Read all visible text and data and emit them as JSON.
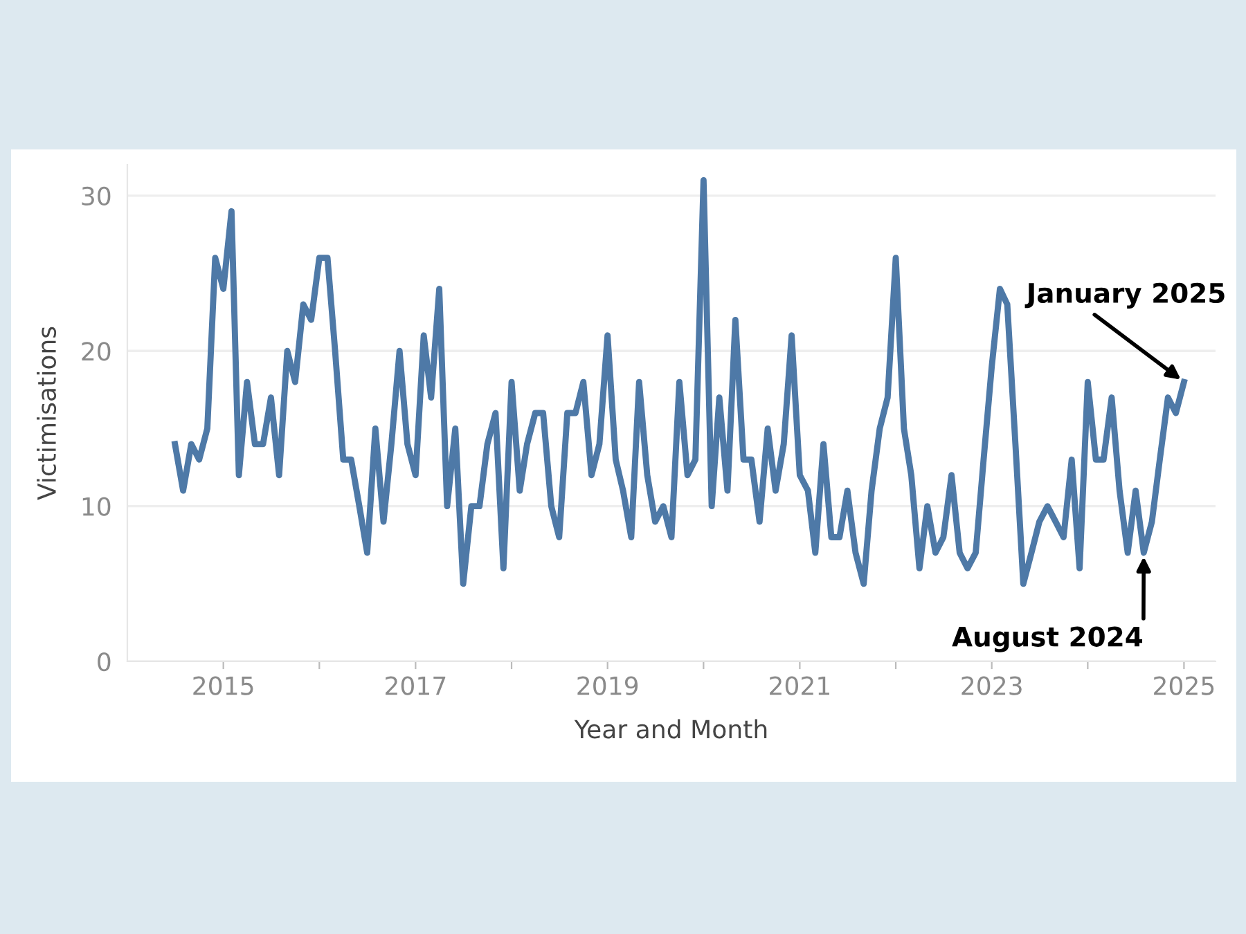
{
  "chart_data": {
    "type": "line",
    "xlabel": "Year and Month",
    "ylabel": "Victimisations",
    "x": [
      "2014-07",
      "2014-08",
      "2014-09",
      "2014-10",
      "2014-11",
      "2014-12",
      "2015-01",
      "2015-02",
      "2015-03",
      "2015-04",
      "2015-05",
      "2015-06",
      "2015-07",
      "2015-08",
      "2015-09",
      "2015-10",
      "2015-11",
      "2015-12",
      "2016-01",
      "2016-02",
      "2016-03",
      "2016-04",
      "2016-05",
      "2016-06",
      "2016-07",
      "2016-08",
      "2016-09",
      "2016-10",
      "2016-11",
      "2016-12",
      "2017-01",
      "2017-02",
      "2017-03",
      "2017-04",
      "2017-05",
      "2017-06",
      "2017-07",
      "2017-08",
      "2017-09",
      "2017-10",
      "2017-11",
      "2017-12",
      "2018-01",
      "2018-02",
      "2018-03",
      "2018-04",
      "2018-05",
      "2018-06",
      "2018-07",
      "2018-08",
      "2018-09",
      "2018-10",
      "2018-11",
      "2018-12",
      "2019-01",
      "2019-02",
      "2019-03",
      "2019-04",
      "2019-05",
      "2019-06",
      "2019-07",
      "2019-08",
      "2019-09",
      "2019-10",
      "2019-11",
      "2019-12",
      "2020-01",
      "2020-02",
      "2020-03",
      "2020-04",
      "2020-05",
      "2020-06",
      "2020-07",
      "2020-08",
      "2020-09",
      "2020-10",
      "2020-11",
      "2020-12",
      "2021-01",
      "2021-02",
      "2021-03",
      "2021-04",
      "2021-05",
      "2021-06",
      "2021-07",
      "2021-08",
      "2021-09",
      "2021-10",
      "2021-11",
      "2021-12",
      "2022-01",
      "2022-02",
      "2022-03",
      "2022-04",
      "2022-05",
      "2022-06",
      "2022-07",
      "2022-08",
      "2022-09",
      "2022-10",
      "2022-11",
      "2022-12",
      "2023-01",
      "2023-02",
      "2023-03",
      "2023-04",
      "2023-05",
      "2023-06",
      "2023-07",
      "2023-08",
      "2023-09",
      "2023-10",
      "2023-11",
      "2023-12",
      "2024-01",
      "2024-02",
      "2024-03",
      "2024-04",
      "2024-05",
      "2024-06",
      "2024-07",
      "2024-08",
      "2024-09",
      "2024-10",
      "2024-11",
      "2024-12",
      "2025-01"
    ],
    "series": [
      {
        "color": "#4e79a7",
        "values": [
          14,
          11,
          14,
          13,
          15,
          26,
          24,
          29,
          12,
          18,
          14,
          14,
          17,
          12,
          20,
          18,
          23,
          22,
          26,
          26,
          20,
          13,
          13,
          10,
          7,
          15,
          9,
          14,
          20,
          14,
          12,
          21,
          17,
          24,
          10,
          15,
          5,
          10,
          10,
          14,
          16,
          6,
          18,
          11,
          14,
          16,
          16,
          10,
          8,
          16,
          16,
          18,
          12,
          14,
          21,
          13,
          11,
          8,
          18,
          12,
          9,
          10,
          8,
          18,
          12,
          13,
          31,
          10,
          17,
          11,
          22,
          13,
          13,
          9,
          15,
          11,
          14,
          21,
          12,
          11,
          7,
          14,
          8,
          8,
          11,
          7,
          5,
          11,
          15,
          17,
          26,
          15,
          12,
          6,
          10,
          7,
          8,
          12,
          7,
          6,
          7,
          13,
          19,
          24,
          23,
          14,
          5,
          7,
          9,
          10,
          9,
          8,
          13,
          6,
          18,
          13,
          13,
          17,
          11,
          7,
          11,
          7,
          9,
          13,
          17,
          16,
          18
        ]
      }
    ],
    "xlim": [
      "2014-01",
      "2025-05"
    ],
    "xticks": [
      {
        "value": "2015",
        "label": "2015"
      },
      {
        "value": "2016",
        "label": null
      },
      {
        "value": "2017",
        "label": "2017"
      },
      {
        "value": "2018",
        "label": null
      },
      {
        "value": "2019",
        "label": "2019"
      },
      {
        "value": "2020",
        "label": null
      },
      {
        "value": "2021",
        "label": "2021"
      },
      {
        "value": "2022",
        "label": null
      },
      {
        "value": "2023",
        "label": "2023"
      },
      {
        "value": "2024",
        "label": null
      },
      {
        "value": "2025",
        "label": "2025"
      }
    ],
    "ylim": [
      0,
      32
    ],
    "yticks": [
      0,
      10,
      20,
      30
    ],
    "grid": "y",
    "line_style": "solid",
    "marker": "none",
    "legend": false,
    "annotations": [
      {
        "text": "January 2025",
        "x": "2025-01",
        "y": 18
      },
      {
        "text": "August 2024",
        "x": "2024-08",
        "y": 7
      }
    ]
  }
}
